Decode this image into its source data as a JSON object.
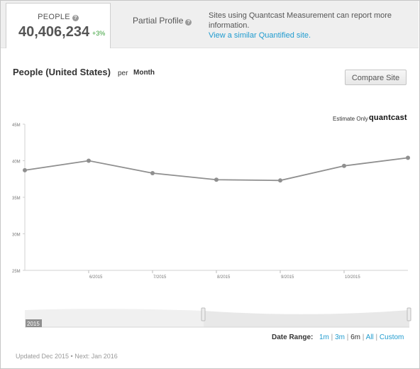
{
  "tabs": {
    "people_label": "PEOPLE",
    "people_value": "40,406,234",
    "people_change": "+3%",
    "partial_label": "Partial Profile"
  },
  "notice": {
    "text": "Sites using Quantcast Measurement can report more information.",
    "link": "View a similar Quantified site."
  },
  "header": {
    "title": "People (United States)",
    "per": "per",
    "period": "Month",
    "compare_button": "Compare Site"
  },
  "chart_data": {
    "type": "line",
    "title": "People (United States)",
    "x": [
      "5/2015",
      "6/2015",
      "7/2015",
      "8/2015",
      "9/2015",
      "10/2015",
      "11/2015"
    ],
    "y_ticks": [
      "45M",
      "40M",
      "35M",
      "30M",
      "25M"
    ],
    "x_tick_labels": [
      "6/2015",
      "7/2015",
      "8/2015",
      "9/2015",
      "10/2015"
    ],
    "ylim": [
      25000000,
      45000000
    ],
    "series": [
      {
        "values": [
          38700000,
          40000000,
          38300000,
          37400000,
          37300000,
          39300000,
          40400000
        ]
      }
    ],
    "grid": false,
    "estimate_label": "Estimate Only",
    "brand": "quantcast",
    "navigator_label": "2015",
    "line_color": "#8f8f8f"
  },
  "date_range": {
    "label": "Date Range:",
    "options": [
      "1m",
      "3m",
      "6m",
      "All",
      "Custom"
    ],
    "active": "6m"
  },
  "footer": {
    "updated": "Updated Dec 2015 • Next: Jan 2016"
  }
}
